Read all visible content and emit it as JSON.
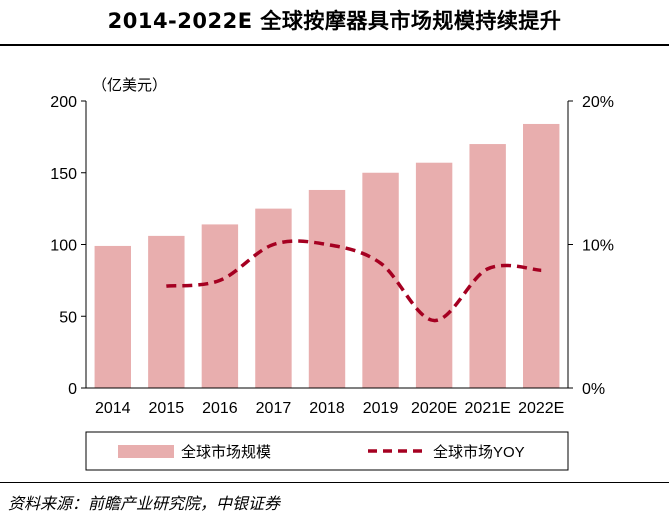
{
  "title": "2014-2022E 全球按摩器具市场规模持续提升",
  "source": "资料来源：前瞻产业研究院，中银证券",
  "colors": {
    "bar": "#E8AEAE",
    "line": "#A50021"
  },
  "chart_data": {
    "type": "bar",
    "categories": [
      "2014",
      "2015",
      "2016",
      "2017",
      "2018",
      "2019",
      "2020E",
      "2021E",
      "2022E"
    ],
    "series": [
      {
        "name": "全球市场规模",
        "type": "bar",
        "axis": "left",
        "values": [
          99,
          106,
          114,
          125,
          138,
          150,
          157,
          170,
          184
        ]
      },
      {
        "name": "全球市场YOY",
        "type": "line",
        "axis": "right",
        "style": "dashed",
        "values": [
          null,
          7.1,
          7.5,
          10.0,
          10.0,
          8.7,
          4.7,
          8.3,
          8.2
        ]
      }
    ],
    "ylabel": "（亿美元）",
    "ylim": [
      0,
      200
    ],
    "yticks": [
      0,
      50,
      100,
      150,
      200
    ],
    "y2lim": [
      0,
      20
    ],
    "y2ticks": [
      "0%",
      "10%",
      "20%"
    ],
    "legend": "bottom",
    "grid": false
  }
}
